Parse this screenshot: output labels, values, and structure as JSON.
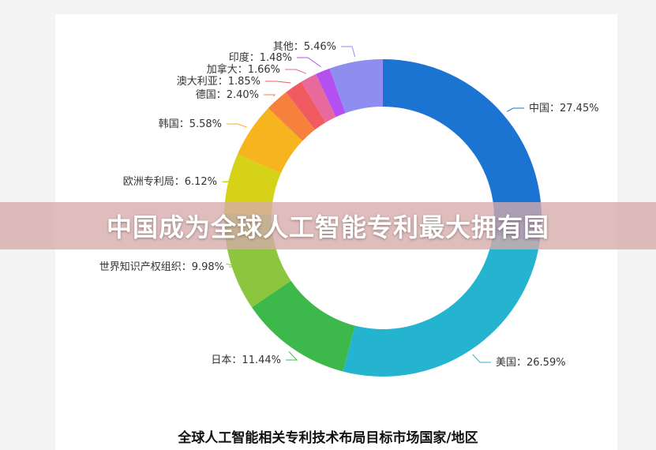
{
  "banner": {
    "title": "中国成为全球人工智能专利最大拥有国"
  },
  "chart_data": {
    "type": "pie",
    "title": "全球人工智能相关专利技术布局目标市场国家/地区",
    "slices": [
      {
        "label": "中国",
        "value": 27.45,
        "display": "中国：27.45%",
        "color": "#1b74d2"
      },
      {
        "label": "美国",
        "value": 26.59,
        "display": "美国：26.59%",
        "color": "#25b4d0"
      },
      {
        "label": "日本",
        "value": 11.44,
        "display": "日本：11.44%",
        "color": "#3db84b"
      },
      {
        "label": "世界知识产权组织",
        "value": 9.98,
        "display": "世界知识产权组织：9.98%",
        "color": "#8cc63f"
      },
      {
        "label": "欧洲专利局",
        "value": 6.12,
        "display": "欧洲专利局：6.12%",
        "color": "#d5d217"
      },
      {
        "label": "韩国",
        "value": 5.58,
        "display": "韩国：5.58%",
        "color": "#f6b51e"
      },
      {
        "label": "德国",
        "value": 2.4,
        "display": "德国：2.40%",
        "color": "#f5813d"
      },
      {
        "label": "澳大利亚",
        "value": 1.85,
        "display": "澳大利亚：1.85%",
        "color": "#f05a61"
      },
      {
        "label": "加拿大",
        "value": 1.66,
        "display": "加拿大：1.66%",
        "color": "#e86a9c"
      },
      {
        "label": "印度",
        "value": 1.48,
        "display": "印度：1.48%",
        "color": "#b44ff0"
      },
      {
        "label": "其他",
        "value": 5.46,
        "display": "其他：5.46%",
        "color": "#8f8ef0"
      }
    ]
  }
}
